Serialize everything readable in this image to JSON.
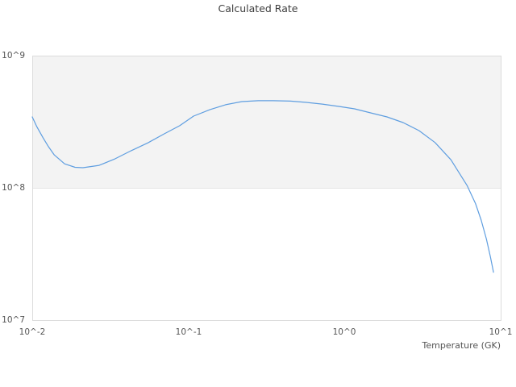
{
  "chart_data": {
    "type": "line",
    "title": "Calculated Rate",
    "xlabel": "Temperature (GK)",
    "ylabel": "",
    "xscale": "log",
    "yscale": "log",
    "xlim": [
      0.01,
      10
    ],
    "ylim": [
      10000000.0,
      1000000000.0
    ],
    "xticklabels": [
      "10^-2",
      "10^-1",
      "10^0",
      "10^1"
    ],
    "yticklabels": [
      "10^9",
      "10^8",
      "10^7"
    ],
    "grid": "single horizontal gridline at 1e8",
    "legend": "none",
    "band": {
      "y_from": 100000000.0,
      "y_to": 1000000000.0,
      "color": "#f3f3f3"
    },
    "series": [
      {
        "name": "calculated-rate",
        "color": "#5f9ee0",
        "x": [
          0.01,
          0.0107,
          0.0117,
          0.0127,
          0.0138,
          0.0161,
          0.0188,
          0.0211,
          0.0268,
          0.034,
          0.043,
          0.055,
          0.07,
          0.088,
          0.108,
          0.137,
          0.173,
          0.22,
          0.28,
          0.35,
          0.45,
          0.57,
          0.72,
          0.92,
          1.16,
          1.47,
          1.87,
          2.37,
          3.0,
          3.8,
          4.8,
          6.1,
          6.9,
          7.5,
          8.1,
          8.6,
          9.0
        ],
        "y": [
          344000000.0,
          290000000.0,
          240000000.0,
          205000000.0,
          178000000.0,
          152000000.0,
          143000000.0,
          142000000.0,
          148000000.0,
          166000000.0,
          191000000.0,
          219000000.0,
          256000000.0,
          295000000.0,
          349000000.0,
          390000000.0,
          425000000.0,
          449000000.0,
          456000000.0,
          456000000.0,
          453000000.0,
          443000000.0,
          430000000.0,
          413000000.0,
          396000000.0,
          369000000.0,
          344000000.0,
          312000000.0,
          271000000.0,
          220000000.0,
          163000000.0,
          104000000.0,
          76000000.0,
          57000000.0,
          41000000.0,
          30000000.0,
          23000000.0
        ]
      }
    ]
  },
  "colors": {
    "line": "#5f9ee0",
    "band": "#f3f3f3",
    "plot_border": "#dcdcdc",
    "gridline": "#e6e6e6",
    "title_text": "#3d3d3d",
    "tick_text": "#555555"
  }
}
